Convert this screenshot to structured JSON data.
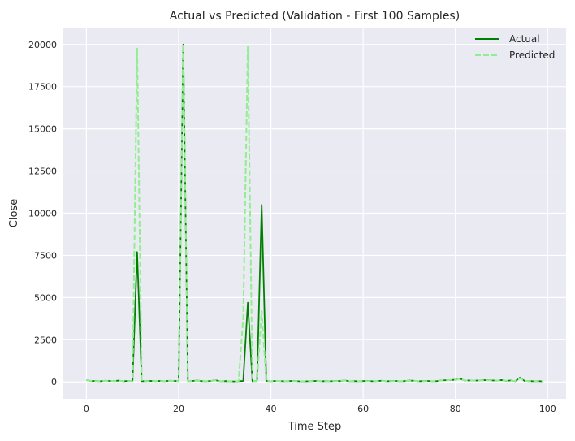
{
  "chart_data": {
    "type": "line",
    "title": "Actual vs Predicted (Validation - First 100 Samples)",
    "xlabel": "Time Step",
    "ylabel": "Close",
    "xlim": [
      -5,
      104
    ],
    "ylim": [
      -1000,
      21000
    ],
    "xticks": [
      0,
      20,
      40,
      60,
      80,
      100
    ],
    "yticks": [
      0,
      2500,
      5000,
      7500,
      10000,
      12500,
      15000,
      17500,
      20000
    ],
    "grid": true,
    "legend": "top-right",
    "series": [
      {
        "name": "Actual",
        "color": "#008000",
        "style": "solid",
        "x": [
          0,
          1,
          2,
          3,
          4,
          5,
          6,
          7,
          8,
          9,
          10,
          11,
          12,
          13,
          14,
          15,
          16,
          17,
          18,
          19,
          20,
          21,
          22,
          23,
          24,
          25,
          26,
          27,
          28,
          29,
          30,
          31,
          32,
          33,
          34,
          35,
          36,
          37,
          38,
          39,
          40,
          41,
          42,
          43,
          44,
          45,
          46,
          47,
          48,
          49,
          50,
          51,
          52,
          53,
          54,
          55,
          56,
          57,
          58,
          59,
          60,
          61,
          62,
          63,
          64,
          65,
          66,
          67,
          68,
          69,
          70,
          71,
          72,
          73,
          74,
          75,
          76,
          77,
          78,
          79,
          80,
          81,
          82,
          83,
          84,
          85,
          86,
          87,
          88,
          89,
          90,
          91,
          92,
          93,
          94,
          95,
          96,
          97,
          98,
          99
        ],
        "values": [
          110,
          50,
          60,
          40,
          70,
          60,
          50,
          80,
          40,
          60,
          50,
          7700,
          40,
          50,
          60,
          50,
          60,
          40,
          70,
          60,
          50,
          20000,
          40,
          60,
          80,
          50,
          40,
          60,
          100,
          40,
          50,
          40,
          30,
          40,
          60,
          4700,
          40,
          60,
          10500,
          60,
          40,
          60,
          50,
          40,
          50,
          60,
          40,
          30,
          40,
          50,
          60,
          40,
          50,
          40,
          60,
          50,
          90,
          40,
          50,
          40,
          50,
          60,
          40,
          50,
          70,
          40,
          50,
          60,
          40,
          50,
          80,
          70,
          40,
          50,
          60,
          40,
          50,
          90,
          100,
          110,
          130,
          200,
          80,
          90,
          70,
          90,
          100,
          110,
          90,
          70,
          110,
          60,
          90,
          40,
          260,
          60,
          50,
          40,
          50,
          30
        ]
      },
      {
        "name": "Predicted",
        "color": "#90ee90",
        "style": "dashed",
        "x": [
          0,
          1,
          2,
          3,
          4,
          5,
          6,
          7,
          8,
          9,
          10,
          11,
          12,
          13,
          14,
          15,
          16,
          17,
          18,
          19,
          20,
          21,
          22,
          23,
          24,
          25,
          26,
          27,
          28,
          29,
          30,
          31,
          32,
          33,
          34,
          35,
          36,
          37,
          38,
          39,
          40,
          41,
          42,
          43,
          44,
          45,
          46,
          47,
          48,
          49,
          50,
          51,
          52,
          53,
          54,
          55,
          56,
          57,
          58,
          59,
          60,
          61,
          62,
          63,
          64,
          65,
          66,
          67,
          68,
          69,
          70,
          71,
          72,
          73,
          74,
          75,
          76,
          77,
          78,
          79,
          80,
          81,
          82,
          83,
          84,
          85,
          86,
          87,
          88,
          89,
          90,
          91,
          92,
          93,
          94,
          95,
          96,
          97,
          98,
          99
        ],
        "values": [
          100,
          60,
          50,
          50,
          60,
          70,
          50,
          70,
          50,
          50,
          60,
          19800,
          50,
          40,
          50,
          60,
          50,
          50,
          60,
          70,
          40,
          20000,
          50,
          50,
          70,
          60,
          50,
          50,
          90,
          50,
          40,
          50,
          40,
          50,
          3800,
          19900,
          50,
          40,
          4200,
          40,
          50,
          50,
          60,
          50,
          40,
          50,
          50,
          40,
          50,
          40,
          50,
          50,
          40,
          50,
          50,
          60,
          80,
          50,
          40,
          50,
          40,
          50,
          50,
          60,
          60,
          50,
          40,
          50,
          50,
          40,
          70,
          60,
          50,
          40,
          50,
          50,
          40,
          80,
          90,
          120,
          120,
          180,
          90,
          80,
          80,
          100,
          90,
          100,
          80,
          80,
          100,
          70,
          80,
          50,
          220,
          70,
          40,
          50,
          40,
          40
        ]
      }
    ]
  }
}
